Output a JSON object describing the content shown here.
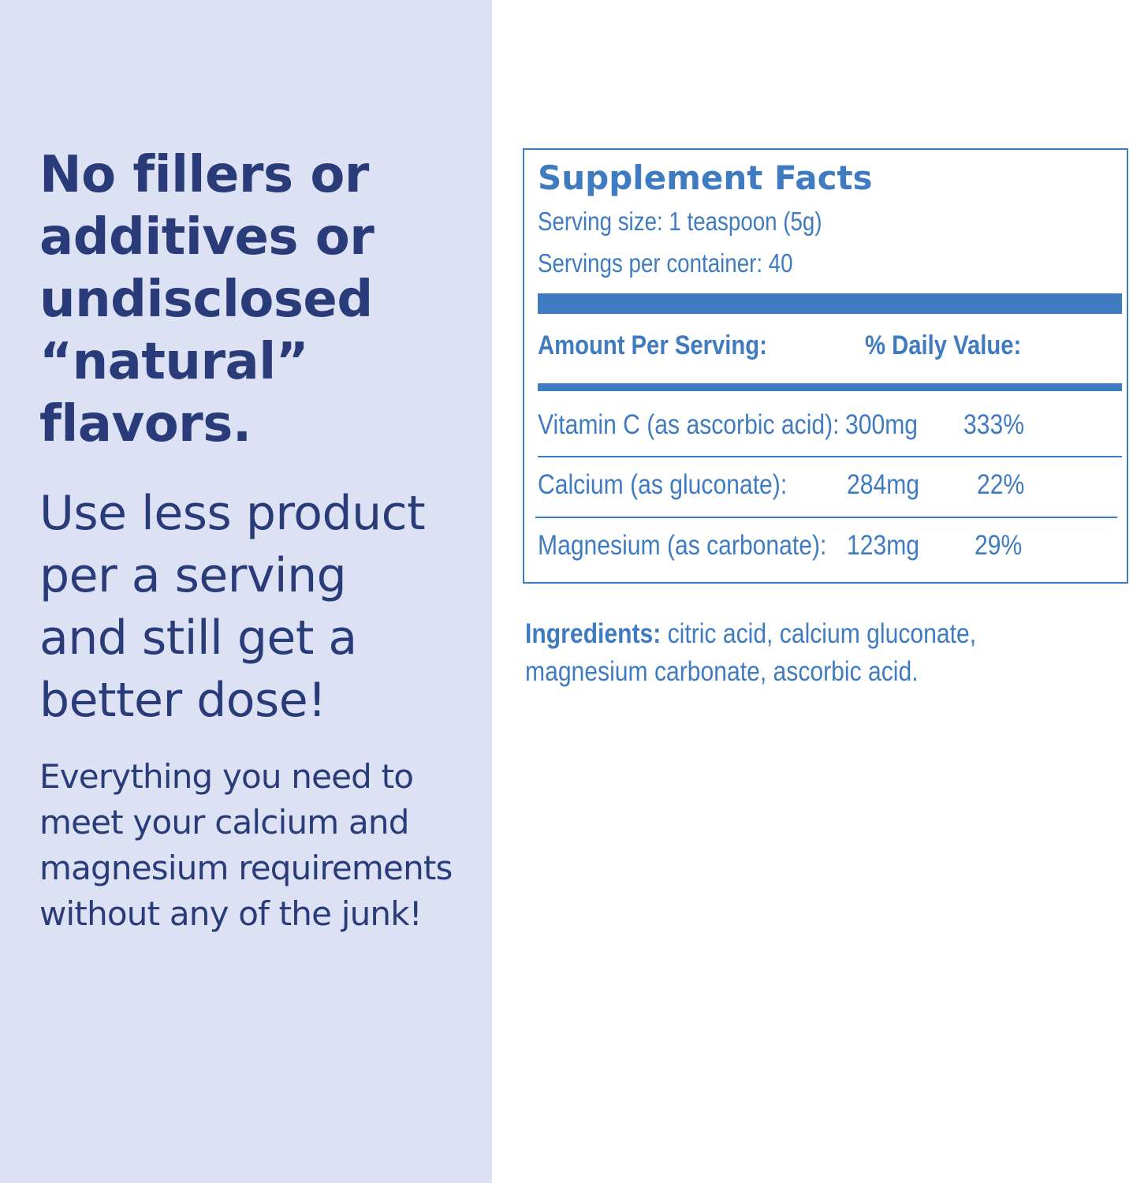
{
  "left": {
    "headline_lines": [
      "No fillers or",
      "additives or",
      "undisclosed",
      "“natural”",
      "flavors."
    ],
    "subhead_lines": [
      "Use less product",
      "per a serving",
      "and still get a",
      "better dose!"
    ],
    "body_lines": [
      "Everything you need to",
      "meet your calcium and",
      "magnesium requirements",
      "without any of the junk!"
    ]
  },
  "supplement_facts": {
    "title": "Supplement Facts",
    "serving_size": "Serving size: 1 teaspoon (5g)",
    "servings_per_container": "Servings per container: 40",
    "header_amount": "Amount  Per Serving:",
    "header_daily_value": "% Daily Value:",
    "rows": [
      {
        "name": "Vitamin C (as ascorbic acid):",
        "amount": "300mg",
        "daily_value": "333%"
      },
      {
        "name": "Calcium (as gluconate):",
        "amount": "284mg",
        "daily_value": "22%"
      },
      {
        "name": "Magnesium (as carbonate):",
        "amount": "123mg",
        "daily_value": "29%"
      }
    ]
  },
  "ingredients": {
    "label": "Ingredients:",
    "line1": " citric acid, calcium gluconate,",
    "line2": "magnesium carbonate, ascorbic acid."
  },
  "colors": {
    "left_panel_bg": "#dce2f4",
    "navy_text": "#293b78",
    "facts_blue": "#3f7bc1",
    "page_bg": "#ffffff"
  }
}
